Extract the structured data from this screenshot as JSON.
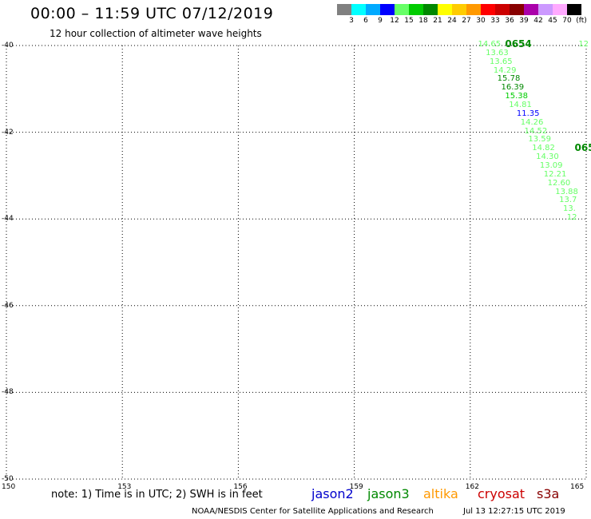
{
  "header": {
    "title": "00:00 – 11:59 UTC 07/12/2019",
    "subtitle": "12 hour collection of altimeter wave heights"
  },
  "color_scale": {
    "items": [
      {
        "label": "3",
        "color": "#808080"
      },
      {
        "label": "6",
        "color": "#00ffff"
      },
      {
        "label": "9",
        "color": "#00aaff"
      },
      {
        "label": "12",
        "color": "#0000ff"
      },
      {
        "label": "15",
        "color": "#66ff66"
      },
      {
        "label": "18",
        "color": "#00cc00"
      },
      {
        "label": "21",
        "color": "#008800"
      },
      {
        "label": "24",
        "color": "#ffff00"
      },
      {
        "label": "27",
        "color": "#ffcc00"
      },
      {
        "label": "30",
        "color": "#ff9900"
      },
      {
        "label": "33",
        "color": "#ff0000"
      },
      {
        "label": "36",
        "color": "#cc0000"
      },
      {
        "label": "39",
        "color": "#880000"
      },
      {
        "label": "42",
        "color": "#aa00aa"
      },
      {
        "label": "45",
        "color": "#cc99ff"
      },
      {
        "label": "70",
        "color": "#ffaaff"
      },
      {
        "label": "",
        "color": "#000000"
      }
    ],
    "unit": "(ft)"
  },
  "axes": {
    "lat_labels": [
      "-40",
      "-42",
      "-44",
      "-46",
      "-48",
      "-50"
    ],
    "lon_labels": [
      "150",
      "153",
      "156",
      "159",
      "162",
      "165"
    ]
  },
  "chart_data": {
    "type": "scatter",
    "title": "00:00 – 11:59 UTC 07/12/2019",
    "xlim": [
      150,
      165
    ],
    "ylim": [
      -50,
      -40
    ],
    "track_times": [
      {
        "label": "0654",
        "lon": 162.9,
        "lat": -40.0,
        "color": "#008800"
      },
      {
        "label": "065",
        "lon": 164.7,
        "lat": -42.4,
        "color": "#008800"
      }
    ],
    "points": [
      {
        "lon": 162.2,
        "lat": -40.0,
        "value": "14.65",
        "color": "#66ff66"
      },
      {
        "lon": 162.4,
        "lat": -40.2,
        "value": "13.63",
        "color": "#66ff66"
      },
      {
        "lon": 162.5,
        "lat": -40.4,
        "value": "13.65",
        "color": "#66ff66"
      },
      {
        "lon": 162.6,
        "lat": -40.6,
        "value": "14.29",
        "color": "#66ff66"
      },
      {
        "lon": 162.7,
        "lat": -40.8,
        "value": "15.78",
        "color": "#008800"
      },
      {
        "lon": 162.8,
        "lat": -41.0,
        "value": "16.39",
        "color": "#008800"
      },
      {
        "lon": 162.9,
        "lat": -41.2,
        "value": "15.38",
        "color": "#00cc00"
      },
      {
        "lon": 163.0,
        "lat": -41.4,
        "value": "14.81",
        "color": "#66ff66"
      },
      {
        "lon": 163.2,
        "lat": -41.6,
        "value": "11.35",
        "color": "#0000ff"
      },
      {
        "lon": 163.3,
        "lat": -41.8,
        "value": "14.26",
        "color": "#66ff66"
      },
      {
        "lon": 163.4,
        "lat": -42.0,
        "value": "14.52",
        "color": "#66ff66"
      },
      {
        "lon": 163.5,
        "lat": -42.2,
        "value": "13.59",
        "color": "#66ff66"
      },
      {
        "lon": 163.6,
        "lat": -42.4,
        "value": "14.82",
        "color": "#66ff66"
      },
      {
        "lon": 163.7,
        "lat": -42.6,
        "value": "14.30",
        "color": "#66ff66"
      },
      {
        "lon": 163.8,
        "lat": -42.8,
        "value": "13.09",
        "color": "#66ff66"
      },
      {
        "lon": 163.9,
        "lat": -43.0,
        "value": "12.21",
        "color": "#66ff66"
      },
      {
        "lon": 164.0,
        "lat": -43.2,
        "value": "12.60",
        "color": "#66ff66"
      },
      {
        "lon": 164.2,
        "lat": -43.4,
        "value": "13.88",
        "color": "#66ff66"
      },
      {
        "lon": 164.3,
        "lat": -43.6,
        "value": "13.7",
        "color": "#66ff66"
      },
      {
        "lon": 164.4,
        "lat": -43.8,
        "value": "13.",
        "color": "#66ff66"
      },
      {
        "lon": 164.5,
        "lat": -44.0,
        "value": "12",
        "color": "#66ff66"
      },
      {
        "lon": 164.8,
        "lat": -40.0,
        "value": "12",
        "color": "#66ff66"
      }
    ]
  },
  "footer": {
    "note": "note: 1) Time is in UTC; 2) SWH is in feet",
    "missions": [
      {
        "name": "jason2",
        "color": "#0000cc"
      },
      {
        "name": "jason3",
        "color": "#008800"
      },
      {
        "name": "altika",
        "color": "#ff9900"
      },
      {
        "name": "cryosat",
        "color": "#cc0000"
      },
      {
        "name": "s3a",
        "color": "#880000"
      }
    ],
    "credit": "NOAA/NESDIS Center for Satellite Applications and Research",
    "timestamp": "Jul 13 12:27:15 UTC 2019"
  }
}
